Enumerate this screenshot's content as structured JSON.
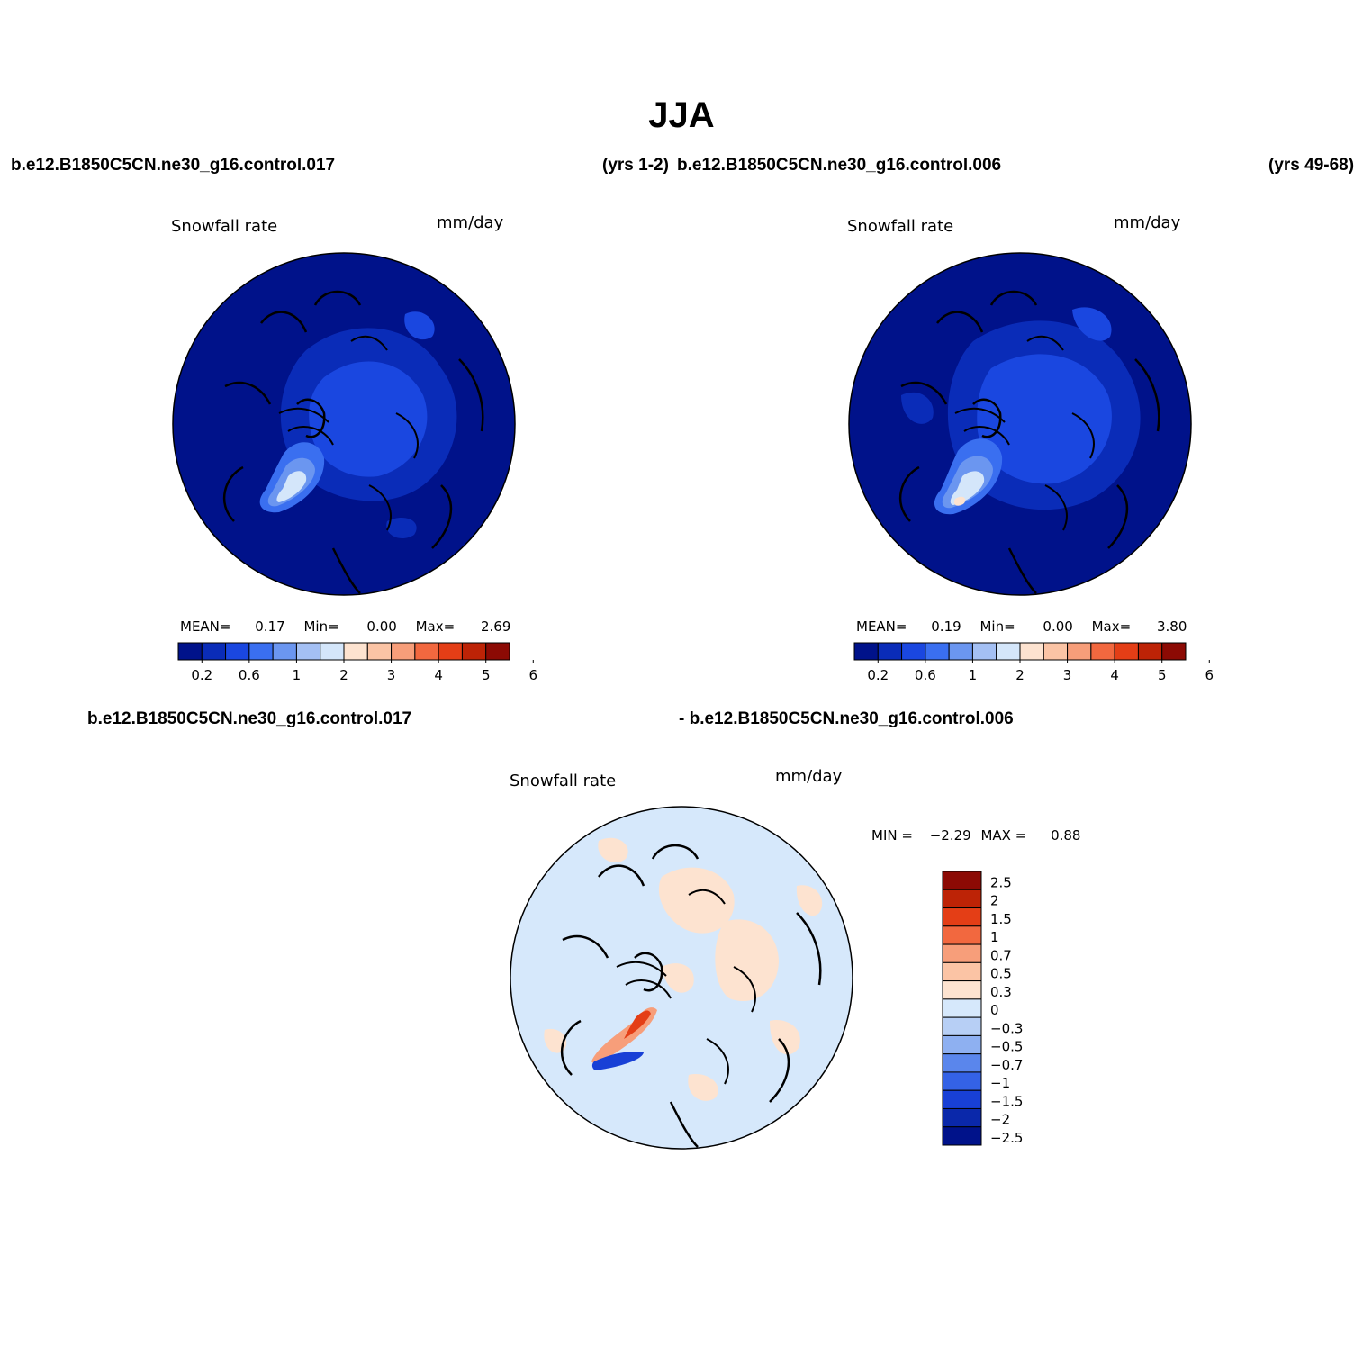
{
  "title": "JJA",
  "header": {
    "case1": "b.e12.B1850C5CN.ne30_g16.control.017",
    "yrs1": "(yrs 1-2)",
    "case2": "b.e12.B1850C5CN.ne30_g16.control.006",
    "yrs2": "(yrs 49-68)"
  },
  "diff_header": {
    "left": "b.e12.B1850C5CN.ne30_g16.control.017",
    "right": "- b.e12.B1850C5CN.ne30_g16.control.006"
  },
  "panels": [
    {
      "variable": "Snowfall rate",
      "units": "mm/day",
      "stats": {
        "mean_label": "MEAN=",
        "mean": "0.17",
        "min_label": "Min=",
        "min": "0.00",
        "max_label": "Max=",
        "max": "2.69"
      }
    },
    {
      "variable": "Snowfall rate",
      "units": "mm/day",
      "stats": {
        "mean_label": "MEAN=",
        "mean": "0.19",
        "min_label": "Min=",
        "min": "0.00",
        "max_label": "Max=",
        "max": "3.80"
      }
    },
    {
      "variable": "Snowfall rate",
      "units": "mm/day",
      "stats": {
        "min_label": "MIN =",
        "min": "−2.29",
        "max_label": "MAX =",
        "max": "0.88"
      }
    }
  ],
  "colorbar_abs": {
    "tick_labels": [
      "0.2",
      "0.6",
      "1",
      "2",
      "3",
      "4",
      "5",
      "6"
    ],
    "colors": [
      "#00128a",
      "#0a2cb8",
      "#1a47e0",
      "#3a6ff0",
      "#6b96f0",
      "#a4c0f4",
      "#d4e6fa",
      "#fde3d0",
      "#fbc4a5",
      "#f79e7a",
      "#f2683f",
      "#e43e16",
      "#bd2306",
      "#8c0a04"
    ]
  },
  "colorbar_diff": {
    "tick_labels": [
      "2.5",
      "2",
      "1.5",
      "1",
      "0.7",
      "0.5",
      "0.3",
      "0",
      "−0.3",
      "−0.5",
      "−0.7",
      "−1",
      "−1.5",
      "−2",
      "−2.5"
    ],
    "colors": [
      "#8c0a04",
      "#bd2306",
      "#e43e16",
      "#f2683f",
      "#f79e7a",
      "#fbc4a5",
      "#fde3d0",
      "#d6e8fb",
      "#b7cff5",
      "#8eb0f1",
      "#5a86ec",
      "#3462e6",
      "#1840d6",
      "#0a28aa",
      "#00128a"
    ]
  },
  "map_colors": {
    "ocean_low": "#00128a",
    "mid_low": "#0a2cb8",
    "mid": "#1a47e0",
    "greenland_high": "#d4e6fa",
    "diff_bg": "#d6e8fb",
    "diff_pos": "#fde3d0",
    "diff_neg": "#1840d6"
  }
}
